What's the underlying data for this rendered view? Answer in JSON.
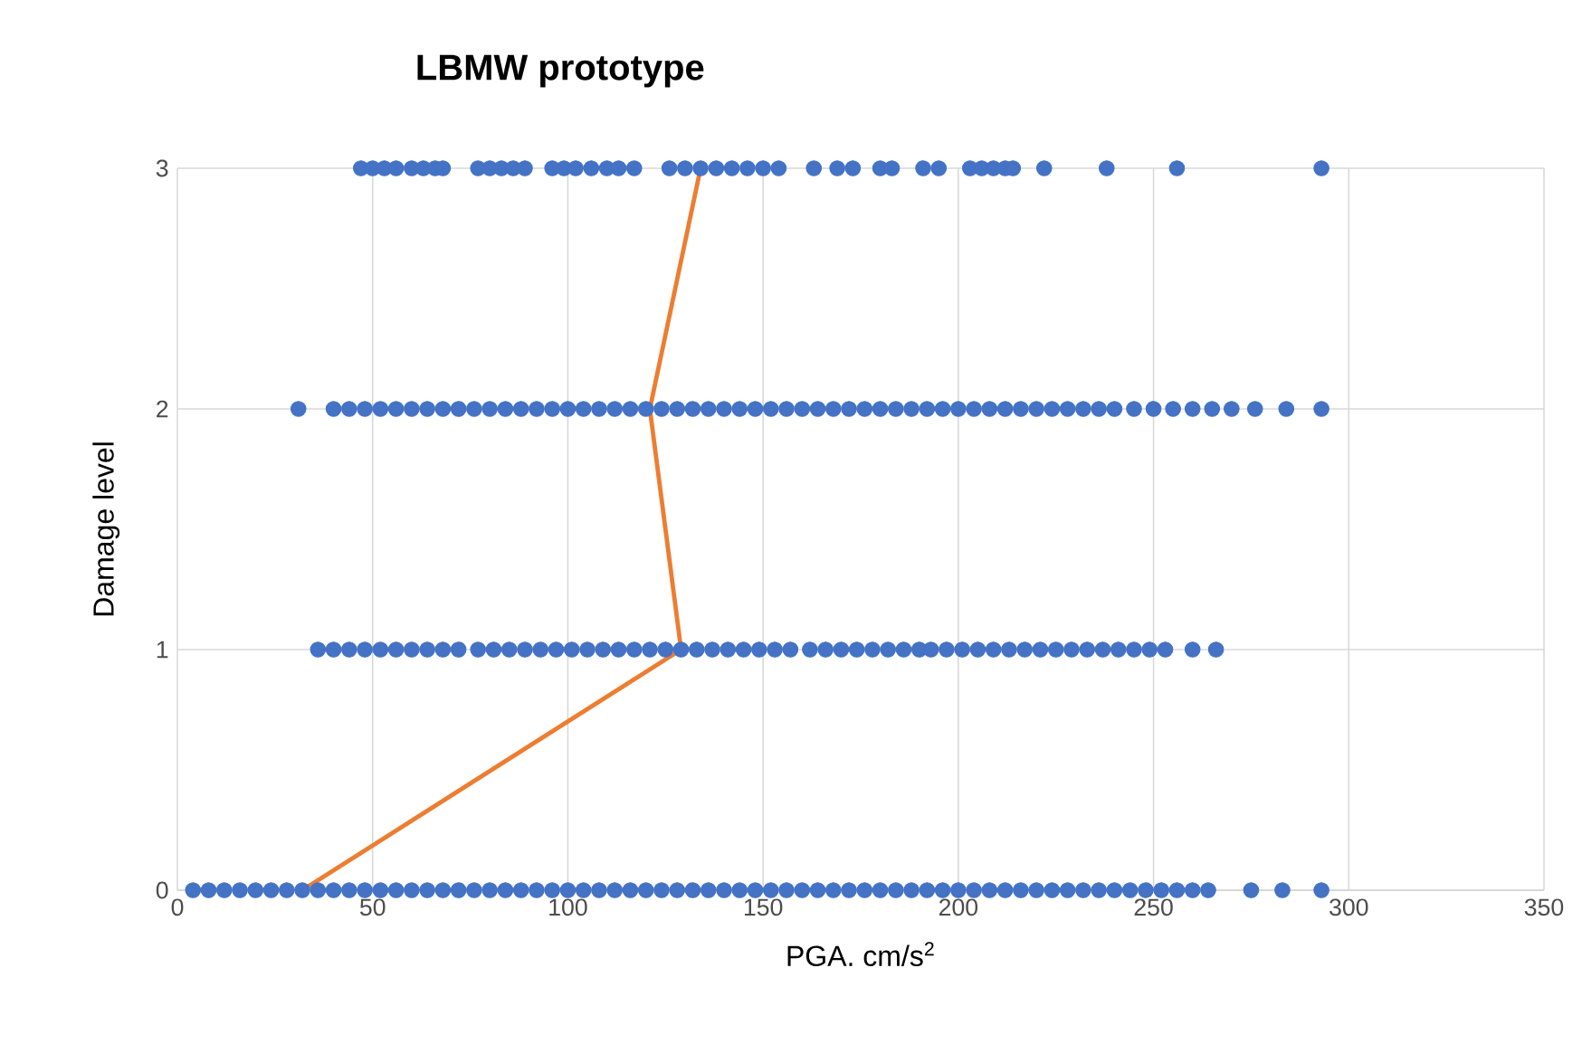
{
  "chart_data": {
    "type": "scatter",
    "title": "**LBMW prototype**",
    "xlabel": "PGA. cm/s$^{2}$",
    "ylabel": "Damage level",
    "xlim": [
      0,
      350
    ],
    "xticks": [
      0,
      50,
      100,
      150,
      200,
      250,
      300,
      350
    ],
    "ylim": [
      0,
      3
    ],
    "yticks": [
      0,
      1,
      2,
      3
    ],
    "grid": true,
    "marker": "circle",
    "series": [
      {
        "color": "#4472c4",
        "x": [
          4,
          8,
          12,
          16,
          20,
          24,
          28,
          32,
          36,
          40,
          44,
          48,
          52,
          56,
          60,
          64,
          68,
          72,
          76,
          80,
          84,
          88,
          92,
          96,
          100,
          104,
          108,
          112,
          116,
          120,
          124,
          128,
          132,
          136,
          140,
          144,
          148,
          152,
          156,
          160,
          164,
          168,
          172,
          176,
          180,
          184,
          188,
          192,
          196,
          200,
          204,
          208,
          212,
          216,
          220,
          224,
          228,
          232,
          236,
          240,
          244,
          248,
          252,
          256,
          260,
          264,
          275,
          283,
          293
        ],
        "values": [
          0,
          0,
          0,
          0,
          0,
          0,
          0,
          0,
          0,
          0,
          0,
          0,
          0,
          0,
          0,
          0,
          0,
          0,
          0,
          0,
          0,
          0,
          0,
          0,
          0,
          0,
          0,
          0,
          0,
          0,
          0,
          0,
          0,
          0,
          0,
          0,
          0,
          0,
          0,
          0,
          0,
          0,
          0,
          0,
          0,
          0,
          0,
          0,
          0,
          0,
          0,
          0,
          0,
          0,
          0,
          0,
          0,
          0,
          0,
          0,
          0,
          0,
          0,
          0,
          0,
          0,
          0,
          0,
          0
        ]
      },
      {
        "color": "#4472c4",
        "x": [
          36,
          40,
          44,
          48,
          52,
          56,
          60,
          64,
          68,
          72,
          77,
          81,
          85,
          89,
          93,
          97,
          101,
          105,
          109,
          113,
          117,
          121,
          125,
          129,
          133,
          137,
          141,
          145,
          149,
          153,
          157,
          162,
          166,
          170,
          174,
          178,
          182,
          186,
          190,
          193,
          197,
          201,
          205,
          209,
          213,
          217,
          221,
          225,
          229,
          233,
          237,
          241,
          245,
          249,
          253,
          260,
          266
        ],
        "values": [
          1,
          1,
          1,
          1,
          1,
          1,
          1,
          1,
          1,
          1,
          1,
          1,
          1,
          1,
          1,
          1,
          1,
          1,
          1,
          1,
          1,
          1,
          1,
          1,
          1,
          1,
          1,
          1,
          1,
          1,
          1,
          1,
          1,
          1,
          1,
          1,
          1,
          1,
          1,
          1,
          1,
          1,
          1,
          1,
          1,
          1,
          1,
          1,
          1,
          1,
          1,
          1,
          1,
          1,
          1,
          1,
          1
        ]
      },
      {
        "color": "#4472c4",
        "x": [
          31,
          40,
          44,
          48,
          52,
          56,
          60,
          64,
          68,
          72,
          76,
          80,
          84,
          88,
          92,
          96,
          100,
          104,
          108,
          112,
          116,
          120,
          124,
          128,
          132,
          136,
          140,
          144,
          148,
          152,
          156,
          160,
          164,
          168,
          172,
          176,
          180,
          184,
          188,
          192,
          196,
          200,
          204,
          208,
          212,
          216,
          220,
          224,
          228,
          232,
          236,
          240,
          245,
          250,
          255,
          260,
          265,
          270,
          276,
          284,
          293
        ],
        "values": [
          2,
          2,
          2,
          2,
          2,
          2,
          2,
          2,
          2,
          2,
          2,
          2,
          2,
          2,
          2,
          2,
          2,
          2,
          2,
          2,
          2,
          2,
          2,
          2,
          2,
          2,
          2,
          2,
          2,
          2,
          2,
          2,
          2,
          2,
          2,
          2,
          2,
          2,
          2,
          2,
          2,
          2,
          2,
          2,
          2,
          2,
          2,
          2,
          2,
          2,
          2,
          2,
          2,
          2,
          2,
          2,
          2,
          2,
          2,
          2,
          2
        ]
      },
      {
        "color": "#4472c4",
        "x": [
          47,
          50,
          53,
          56,
          60,
          63,
          66,
          68,
          77,
          80,
          83,
          86,
          89,
          96,
          99,
          102,
          106,
          110,
          113,
          117,
          126,
          130,
          134,
          138,
          142,
          146,
          150,
          154,
          163,
          169,
          173,
          180,
          183,
          191,
          195,
          203,
          206,
          209,
          212,
          214,
          222,
          238,
          256,
          293
        ],
        "values": [
          3,
          3,
          3,
          3,
          3,
          3,
          3,
          3,
          3,
          3,
          3,
          3,
          3,
          3,
          3,
          3,
          3,
          3,
          3,
          3,
          3,
          3,
          3,
          3,
          3,
          3,
          3,
          3,
          3,
          3,
          3,
          3,
          3,
          3,
          3,
          3,
          3,
          3,
          3,
          3,
          3,
          3,
          3,
          3
        ]
      },
      {
        "type": "line",
        "color": "#ed7d31",
        "marker": "none",
        "x": [
          32,
          129,
          121,
          134
        ],
        "values": [
          0,
          1,
          2,
          3
        ]
      }
    ]
  }
}
